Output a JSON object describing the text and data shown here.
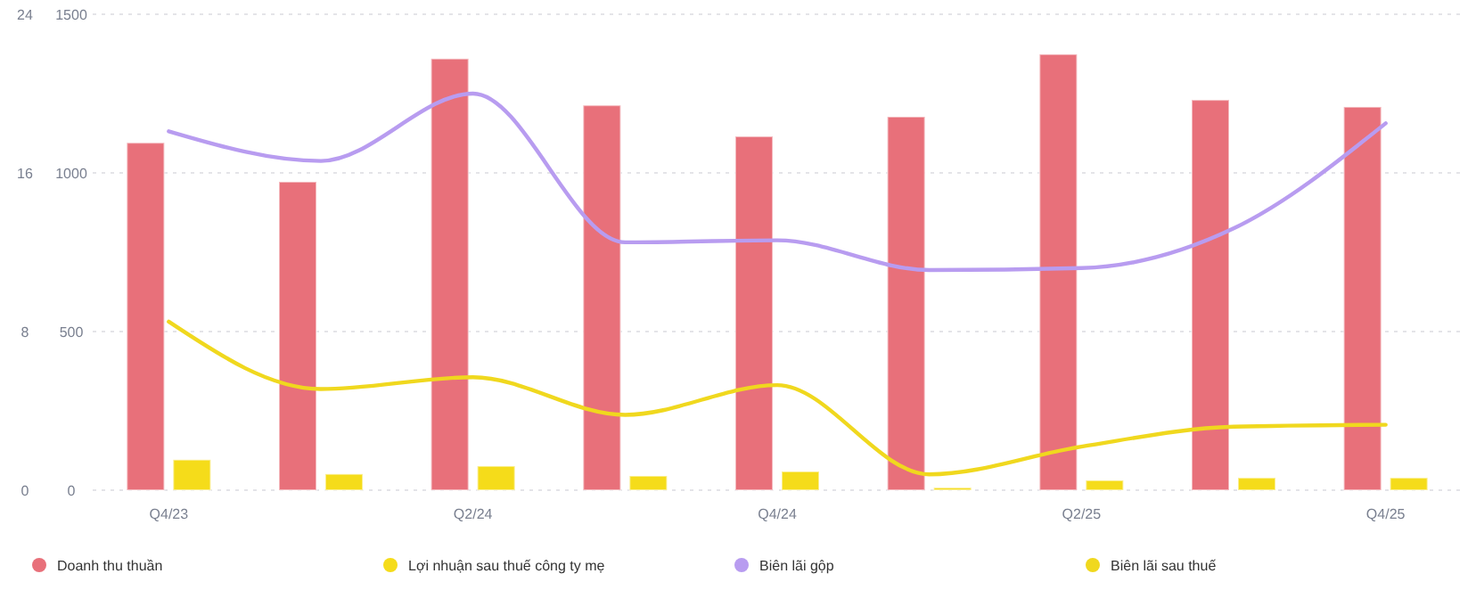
{
  "chart_data": {
    "type": "bar",
    "categories": [
      "Q4/23",
      null,
      "Q2/24",
      null,
      "Q4/24",
      null,
      "Q2/25",
      null,
      "Q4/25"
    ],
    "series": [
      {
        "name": "Doanh thu thuần",
        "color": "#e8707a",
        "values": [
          1095,
          972,
          1360,
          1213,
          1115,
          1177,
          1374,
          1230,
          1208
        ]
      },
      {
        "name": "Lợi nhuận sau thuế công ty mẹ",
        "color": "#f5dc1a",
        "values": [
          96,
          51,
          76,
          45,
          59,
          8,
          31,
          39,
          39
        ]
      },
      {
        "name": "Biên lãi gộp",
        "type": "line",
        "axis": "y2",
        "color": "#b89cf0",
        "values": [
          18.1,
          16.6,
          20.0,
          12.5,
          12.6,
          11.1,
          11.2,
          13.2,
          18.5
        ]
      },
      {
        "name": "Biên lãi sau thuế",
        "type": "line",
        "axis": "y2",
        "color": "#f0d81e",
        "values": [
          8.5,
          5.1,
          5.7,
          3.8,
          5.3,
          0.8,
          2.2,
          3.2,
          3.3
        ]
      }
    ],
    "ylim": [
      0,
      1500
    ],
    "yticks": [
      0,
      500,
      1000,
      1500
    ],
    "y2lim": [
      0,
      24
    ],
    "y2ticks": [
      0,
      8,
      16,
      24
    ],
    "grid": "y",
    "legend": "bottom",
    "marker": "none",
    "line_style": "solid"
  }
}
